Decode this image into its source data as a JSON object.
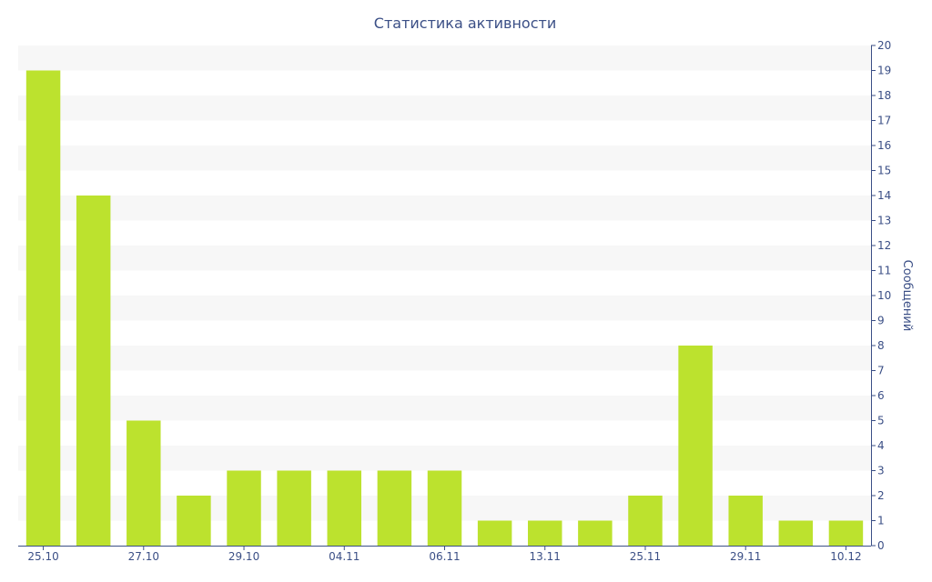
{
  "chart_data": {
    "type": "bar",
    "title": "Статистика активности",
    "ylabel": "Сообщений",
    "xlabel": "",
    "y_axis_side": "right",
    "ylim": [
      0,
      20
    ],
    "yticks": [
      0,
      1,
      2,
      3,
      4,
      5,
      6,
      7,
      8,
      9,
      10,
      11,
      12,
      13,
      14,
      15,
      16,
      17,
      18,
      19,
      20
    ],
    "categories": [
      "25.10",
      "",
      "27.10",
      "",
      "29.10",
      "",
      "04.11",
      "",
      "06.11",
      "",
      "13.11",
      "",
      "25.11",
      "",
      "29.11",
      "",
      "10.12"
    ],
    "values": [
      19,
      14,
      5,
      2,
      3,
      3,
      3,
      3,
      3,
      1,
      1,
      1,
      2,
      8,
      2,
      1,
      1
    ],
    "grid": "alternating horizontal bands",
    "colors": {
      "bar": "#bce22e",
      "band": "#f7f7f7",
      "text": "#3b4f86"
    }
  }
}
